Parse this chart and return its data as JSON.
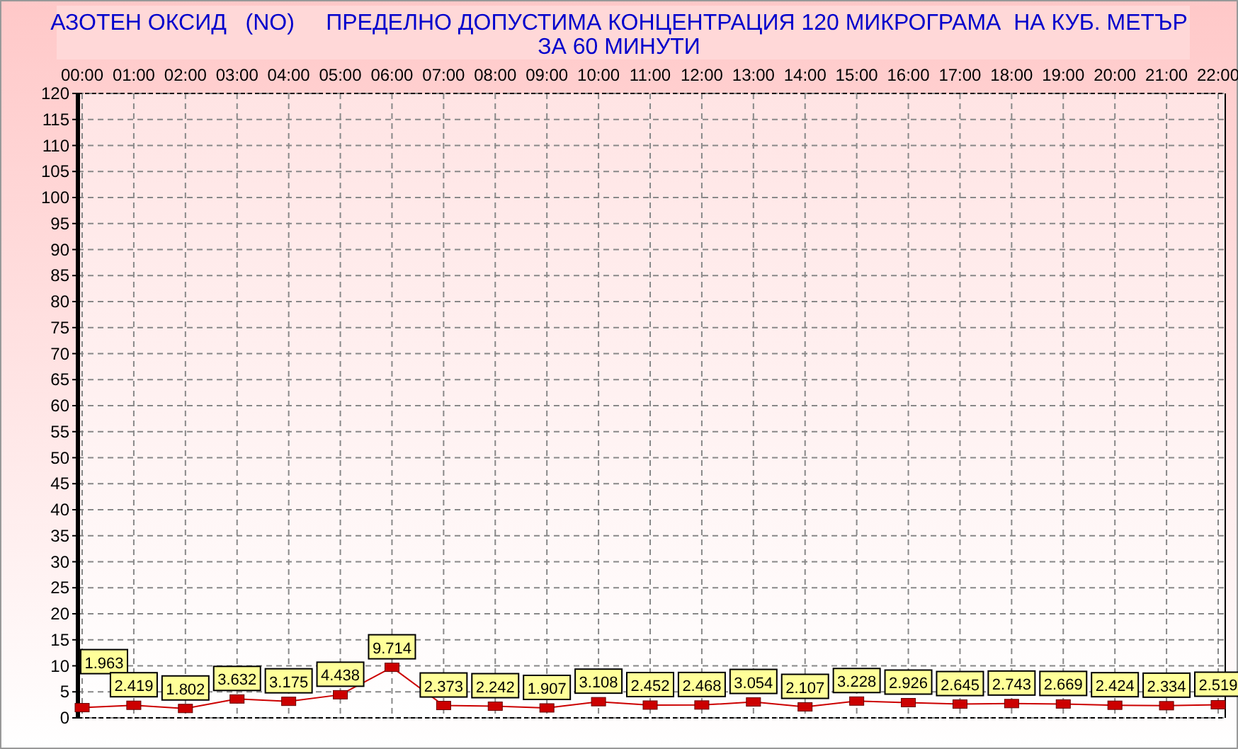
{
  "chart_data": {
    "type": "line",
    "title": "АЗОТЕН ОКСИД   (NO)     ПРЕДЕЛНО ДОПУСТИМА КОНЦЕНТРАЦИЯ 120 МИКРОГРАМА  НА КУБ. МЕТЪР",
    "subtitle": "ЗА 60 МИНУТИ",
    "categories": [
      "00:00",
      "01:00",
      "02:00",
      "03:00",
      "04:00",
      "05:00",
      "06:00",
      "07:00",
      "08:00",
      "09:00",
      "10:00",
      "11:00",
      "12:00",
      "13:00",
      "14:00",
      "15:00",
      "16:00",
      "17:00",
      "18:00",
      "19:00",
      "20:00",
      "21:00",
      "22:00"
    ],
    "series": [
      {
        "color": "#cc0000",
        "values": [
          1.963,
          2.419,
          1.802,
          3.632,
          3.175,
          4.438,
          9.714,
          2.373,
          2.242,
          1.907,
          3.108,
          2.452,
          2.468,
          3.054,
          2.107,
          3.228,
          2.926,
          2.645,
          2.743,
          2.669,
          2.424,
          2.334,
          2.519
        ]
      }
    ],
    "ylim": [
      0,
      120
    ],
    "yticks": [
      0,
      5,
      10,
      15,
      20,
      25,
      30,
      35,
      40,
      45,
      50,
      55,
      60,
      65,
      70,
      75,
      80,
      85,
      90,
      95,
      100,
      105,
      110,
      115,
      120
    ],
    "grid": true,
    "marker": "square",
    "data_labels": true
  }
}
